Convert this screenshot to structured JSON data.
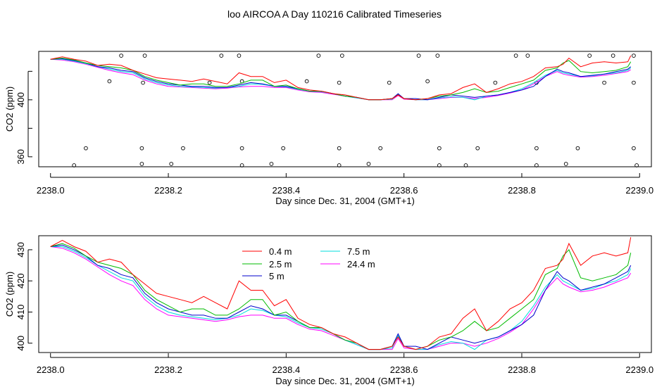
{
  "title": "loo AIRCOA A  Day 110216  Calibrated Timeseries",
  "chart_data": [
    {
      "type": "scatter",
      "xlabel": "Day since Dec. 31, 2004 (GMT+1)",
      "ylabel": "CO2 (ppm)",
      "xlim": [
        2237.98,
        2239.02
      ],
      "ylim": [
        353,
        434
      ],
      "xticks": [
        2238.0,
        2238.2,
        2238.4,
        2238.6,
        2238.8,
        2239.0
      ],
      "xtick_labels": [
        "2238.0",
        "2238.2",
        "2238.4",
        "2238.6",
        "2238.8",
        "2239.0"
      ],
      "yticks": [
        360,
        380,
        400,
        420
      ],
      "ytick_labels": [
        "360",
        "",
        "400",
        ""
      ],
      "grid": false,
      "series_colors": [
        "#ff0000",
        "#00bb00",
        "#0000cc",
        "#00dddd",
        "#ff00ff"
      ],
      "points_desc": "open circles",
      "points": [
        [
          2238.04,
          354
        ],
        [
          2238.06,
          366
        ],
        [
          2238.1,
          413
        ],
        [
          2238.12,
          431
        ],
        [
          2238.155,
          355
        ],
        [
          2238.155,
          366
        ],
        [
          2238.157,
          412
        ],
        [
          2238.16,
          431
        ],
        [
          2238.205,
          355
        ],
        [
          2238.225,
          366
        ],
        [
          2238.27,
          412
        ],
        [
          2238.29,
          431
        ],
        [
          2238.32,
          431
        ],
        [
          2238.325,
          413
        ],
        [
          2238.325,
          366
        ],
        [
          2238.325,
          354
        ],
        [
          2238.375,
          355
        ],
        [
          2238.395,
          366
        ],
        [
          2238.435,
          413
        ],
        [
          2238.455,
          431
        ],
        [
          2238.49,
          354
        ],
        [
          2238.49,
          366
        ],
        [
          2238.49,
          412
        ],
        [
          2238.495,
          431
        ],
        [
          2238.54,
          355
        ],
        [
          2238.56,
          366
        ],
        [
          2238.625,
          431
        ],
        [
          2238.657,
          431
        ],
        [
          2238.575,
          412
        ],
        [
          2238.64,
          413
        ],
        [
          2238.66,
          366
        ],
        [
          2238.66,
          354
        ],
        [
          2238.705,
          354
        ],
        [
          2238.725,
          366
        ],
        [
          2238.755,
          412
        ],
        [
          2238.79,
          431
        ],
        [
          2238.81,
          431
        ],
        [
          2238.825,
          366
        ],
        [
          2238.825,
          412
        ],
        [
          2238.825,
          354
        ],
        [
          2238.875,
          355
        ],
        [
          2238.895,
          366
        ],
        [
          2238.915,
          431
        ],
        [
          2238.94,
          412
        ],
        [
          2238.955,
          431
        ],
        [
          2238.99,
          366
        ],
        [
          2238.99,
          412
        ],
        [
          2238.99,
          431
        ],
        [
          2238.995,
          354
        ]
      ]
    },
    {
      "type": "line",
      "xlabel": "Day since Dec. 31, 2004 (GMT+1)",
      "ylabel": "CO2 (ppm)",
      "xlim": [
        2237.98,
        2239.02
      ],
      "ylim": [
        397,
        434.5
      ],
      "xticks": [
        2238.0,
        2238.2,
        2238.4,
        2238.6,
        2238.8,
        2239.0
      ],
      "xtick_labels": [
        "2238.0",
        "2238.2",
        "2238.4",
        "2238.6",
        "2238.8",
        "2239.0"
      ],
      "yticks": [
        400,
        410,
        420,
        430
      ],
      "ytick_labels": [
        "400",
        "410",
        "420",
        "430"
      ],
      "grid": false,
      "legend_position": "top-left",
      "x": [
        2238.0,
        2238.02,
        2238.04,
        2238.06,
        2238.08,
        2238.1,
        2238.12,
        2238.14,
        2238.16,
        2238.18,
        2238.2,
        2238.22,
        2238.24,
        2238.26,
        2238.28,
        2238.3,
        2238.32,
        2238.34,
        2238.36,
        2238.38,
        2238.4,
        2238.42,
        2238.44,
        2238.46,
        2238.48,
        2238.5,
        2238.52,
        2238.54,
        2238.56,
        2238.58,
        2238.59,
        2238.6,
        2238.62,
        2238.64,
        2238.66,
        2238.68,
        2238.7,
        2238.72,
        2238.74,
        2238.76,
        2238.78,
        2238.8,
        2238.82,
        2238.84,
        2238.86,
        2238.87,
        2238.88,
        2238.9,
        2238.92,
        2238.94,
        2238.96,
        2238.98,
        2238.985
      ],
      "series": [
        {
          "name": "0.4 m",
          "color": "#ff0000",
          "values": [
            431,
            433,
            431,
            429.5,
            426,
            427,
            426,
            422,
            419,
            416,
            415,
            414,
            413,
            415,
            413,
            411,
            420,
            417,
            417,
            412,
            414,
            408,
            406,
            405,
            403,
            402,
            400,
            398,
            398,
            399,
            402,
            399,
            398,
            399,
            402,
            403,
            408,
            411,
            404,
            407,
            411,
            413,
            417,
            424,
            425,
            427,
            432,
            425,
            428,
            429,
            428,
            429,
            434
          ]
        },
        {
          "name": "2.5 m",
          "color": "#00bb00",
          "values": [
            431,
            432,
            430.5,
            428,
            426,
            425,
            424,
            422,
            417,
            414,
            412,
            410,
            411,
            411,
            409,
            409,
            411,
            414,
            414,
            409,
            410,
            407,
            405,
            405,
            403,
            401,
            400,
            398,
            398,
            399,
            402,
            399,
            398,
            399,
            401,
            402,
            404,
            407,
            404,
            405,
            408,
            411,
            414,
            422,
            424,
            428,
            430,
            421,
            420,
            421,
            422,
            425,
            429
          ]
        },
        {
          "name": "5 m",
          "color": "#0000cc",
          "values": [
            431,
            431.5,
            430,
            428,
            425,
            424,
            422,
            421,
            416,
            413,
            411,
            410,
            409,
            409,
            408,
            408,
            410,
            412,
            411,
            409,
            409,
            407,
            405,
            405,
            403,
            401,
            400,
            398,
            398,
            399,
            403,
            399,
            399,
            398,
            400,
            402,
            401,
            400,
            401,
            402,
            404,
            406,
            409,
            417,
            423,
            421,
            420,
            417,
            418,
            419,
            421,
            423,
            425
          ]
        },
        {
          "name": "7.5 m",
          "color": "#00dddd",
          "values": [
            431,
            431,
            429.5,
            427.5,
            425,
            423,
            421,
            420,
            415,
            412,
            410,
            409,
            408.5,
            408,
            407.5,
            408,
            409,
            411,
            410.5,
            409,
            408.5,
            406.5,
            405,
            404.5,
            403,
            401,
            399.5,
            398,
            398,
            398.5,
            402.5,
            399,
            398,
            398,
            399.5,
            400.5,
            400,
            398,
            401,
            402,
            404,
            407,
            412,
            418,
            422,
            420,
            419,
            417,
            417.5,
            419,
            420,
            422,
            424
          ]
        },
        {
          "name": "24.4 m",
          "color": "#ff00ff",
          "values": [
            431,
            430.5,
            429,
            427,
            424.5,
            422,
            420,
            418.5,
            414,
            411,
            409,
            408.5,
            408,
            407.5,
            407,
            407.5,
            408.5,
            409,
            409,
            408,
            408,
            406,
            404.5,
            404,
            402.5,
            401,
            399.5,
            398,
            398,
            398,
            401.5,
            398.5,
            398,
            398,
            399,
            400,
            400,
            399,
            400,
            401.5,
            403.5,
            406,
            411,
            417,
            421,
            419,
            418,
            416.5,
            417,
            418,
            419.5,
            421,
            422.5
          ]
        }
      ]
    }
  ]
}
